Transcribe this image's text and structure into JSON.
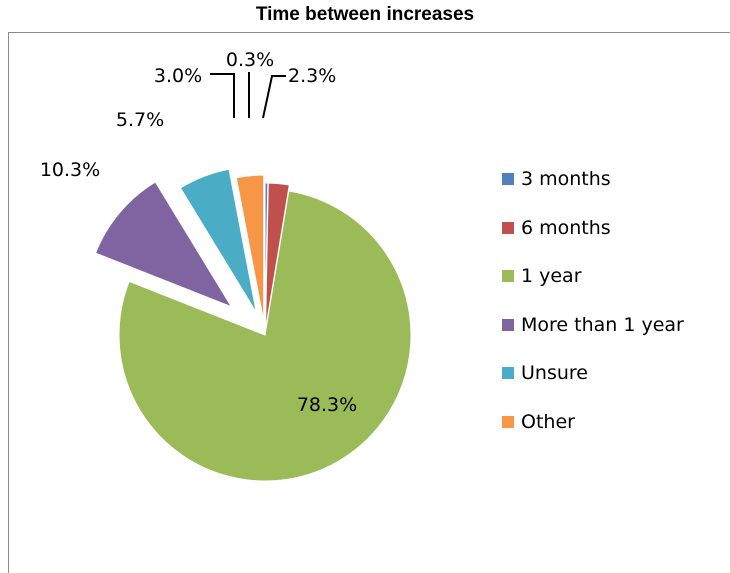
{
  "chart_data": {
    "type": "pie",
    "title": "Time between increases",
    "slices": [
      {
        "label": "3 months",
        "value": 0.3,
        "display": "0.3%",
        "color": "#4f81bd"
      },
      {
        "label": "6 months",
        "value": 2.3,
        "display": "2.3%",
        "color": "#c0504d"
      },
      {
        "label": "1 year",
        "value": 78.3,
        "display": "78.3%",
        "color": "#9bbb59"
      },
      {
        "label": "More than 1 year",
        "value": 10.3,
        "display": "10.3%",
        "color": "#8064a2"
      },
      {
        "label": "Unsure",
        "value": 5.7,
        "display": "5.7%",
        "color": "#4bacc6"
      },
      {
        "label": "Other",
        "value": 3.0,
        "display": "3.0%",
        "color": "#f79646"
      }
    ],
    "exploded": true,
    "legend_position": "right"
  }
}
